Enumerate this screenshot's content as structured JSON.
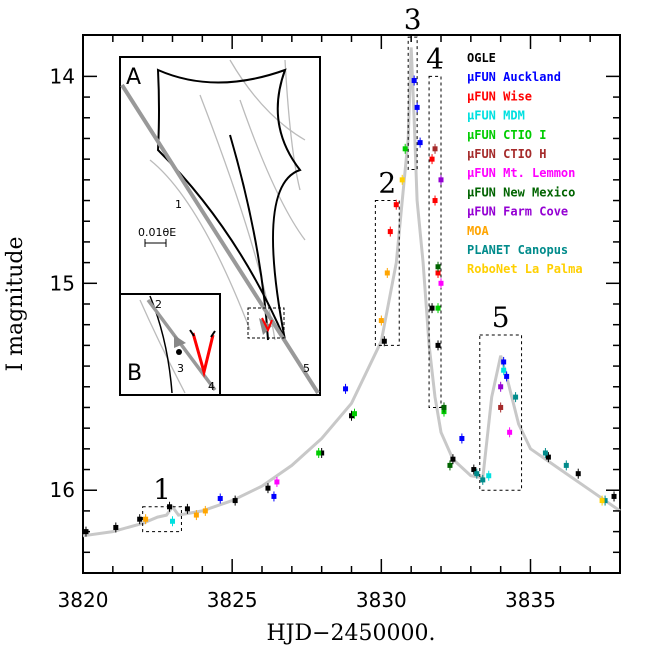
{
  "chart_data": {
    "type": "scatter",
    "title": "",
    "xlabel": "HJD−2450000.",
    "ylabel": "I magnitude",
    "xlim": [
      3820,
      3838
    ],
    "ylim": [
      16.4,
      13.8
    ],
    "x_ticks": [
      "3820",
      "3825",
      "3830",
      "3835"
    ],
    "y_ticks": [
      "14",
      "15",
      "16"
    ],
    "x_tick_values": [
      3820,
      3825,
      3830,
      3835
    ],
    "y_tick_values": [
      14,
      15,
      16
    ],
    "model_curve": {
      "x": [
        3820,
        3821,
        3822,
        3822.5,
        3822.8,
        3823.0,
        3823.2,
        3824,
        3825,
        3826,
        3827,
        3828,
        3829,
        3830,
        3830.5,
        3830.9,
        3831.0,
        3831.1,
        3831.2,
        3831.4,
        3831.6,
        3831.8,
        3832.0,
        3832.4,
        3833,
        3833.4,
        3833.7,
        3834.0,
        3834.2,
        3834.6,
        3835,
        3836,
        3837,
        3838
      ],
      "y": [
        16.22,
        16.2,
        16.16,
        16.13,
        16.12,
        16.08,
        16.12,
        16.1,
        16.05,
        15.98,
        15.88,
        15.75,
        15.58,
        15.28,
        14.9,
        14.3,
        13.86,
        14.2,
        14.6,
        14.9,
        15.3,
        15.55,
        15.72,
        15.85,
        15.93,
        15.94,
        15.55,
        15.35,
        15.45,
        15.68,
        15.8,
        15.9,
        16.0,
        16.1
      ]
    },
    "series": [
      {
        "name": "OGLE",
        "color": "#000000",
        "x": [
          3820.1,
          3821.1,
          3821.9,
          3822.9,
          3823.5,
          3825.1,
          3826.2,
          3828.0,
          3829.0,
          3830.1,
          3831.7,
          3831.9,
          3832.1,
          3832.4,
          3833.1,
          3835.6,
          3836.6,
          3837.8
        ],
        "y": [
          16.2,
          16.18,
          16.14,
          16.08,
          16.09,
          16.05,
          15.99,
          15.82,
          15.64,
          15.28,
          15.12,
          15.3,
          15.6,
          15.85,
          15.9,
          15.84,
          15.92,
          16.03
        ]
      },
      {
        "name": "μFUN Auckland",
        "color": "#0000ff",
        "x": [
          3824.6,
          3826.4,
          3828.8,
          3831.1,
          3831.2,
          3831.3,
          3832.7,
          3834.1,
          3834.2
        ],
        "y": [
          16.04,
          16.03,
          15.51,
          14.02,
          14.15,
          14.32,
          15.75,
          15.38,
          15.45
        ]
      },
      {
        "name": "μFUN Wise",
        "color": "#ff0000",
        "x": [
          3830.3,
          3830.5,
          3831.7,
          3831.8,
          3831.9
        ],
        "y": [
          14.75,
          14.62,
          14.4,
          14.6,
          14.95
        ]
      },
      {
        "name": "μFUN MDM",
        "color": "#00e0e0",
        "x": [
          3823.0,
          3833.6,
          3834.1
        ],
        "y": [
          16.15,
          15.93,
          15.42
        ]
      },
      {
        "name": "μFUN CTIO I",
        "color": "#00cc00",
        "x": [
          3827.9,
          3829.1,
          3830.8,
          3831.9,
          3832.1
        ],
        "y": [
          15.82,
          15.63,
          14.35,
          15.12,
          15.62
        ]
      },
      {
        "name": "μFUN CTIO H",
        "color": "#a52a2a",
        "x": [
          3831.8,
          3834.0
        ],
        "y": [
          14.35,
          15.6
        ]
      },
      {
        "name": "μFUN Mt. Lemmon",
        "color": "#ff00ff",
        "x": [
          3826.5,
          3832.0,
          3834.3
        ],
        "y": [
          15.96,
          15.0,
          15.72
        ]
      },
      {
        "name": "μFUN New Mexico",
        "color": "#006400",
        "x": [
          3831.9,
          3832.1,
          3832.3
        ],
        "y": [
          14.92,
          15.6,
          15.88
        ]
      },
      {
        "name": "μFUN Farm Cove",
        "color": "#9400d3",
        "x": [
          3832.0,
          3834.0
        ],
        "y": [
          14.5,
          15.5
        ]
      },
      {
        "name": "MOA",
        "color": "#ffa500",
        "x": [
          3822.1,
          3823.8,
          3824.1,
          3830.0,
          3830.2
        ],
        "y": [
          16.14,
          16.12,
          16.1,
          15.18,
          14.95
        ]
      },
      {
        "name": "PLANET Canopus",
        "color": "#008b8b",
        "x": [
          3833.2,
          3833.4,
          3834.5,
          3835.5,
          3836.2,
          3837.5
        ],
        "y": [
          15.92,
          15.95,
          15.55,
          15.82,
          15.88,
          16.05
        ]
      },
      {
        "name": "RoboNet La Palma",
        "color": "#ffd000",
        "x": [
          3830.7,
          3837.4
        ],
        "y": [
          14.5,
          16.05
        ]
      }
    ],
    "boxes": [
      {
        "label": "1",
        "x": [
          3822.0,
          3823.3
        ],
        "y": [
          16.08,
          16.2
        ]
      },
      {
        "label": "2",
        "x": [
          3829.8,
          3830.6
        ],
        "y": [
          14.6,
          15.3
        ]
      },
      {
        "label": "3",
        "x": [
          3830.9,
          3831.2
        ],
        "y": [
          13.81,
          14.45
        ]
      },
      {
        "label": "4",
        "x": [
          3831.6,
          3832.0
        ],
        "y": [
          14.0,
          15.6
        ]
      },
      {
        "label": "5",
        "x": [
          3833.3,
          3834.7
        ],
        "y": [
          15.25,
          16.0
        ]
      }
    ],
    "inset_A": {
      "label": "A",
      "scale_label": "0.01θE",
      "track_labels": [
        "1",
        "5"
      ]
    },
    "inset_B": {
      "label": "B",
      "track_labels": [
        "2",
        "3",
        "4"
      ]
    }
  }
}
